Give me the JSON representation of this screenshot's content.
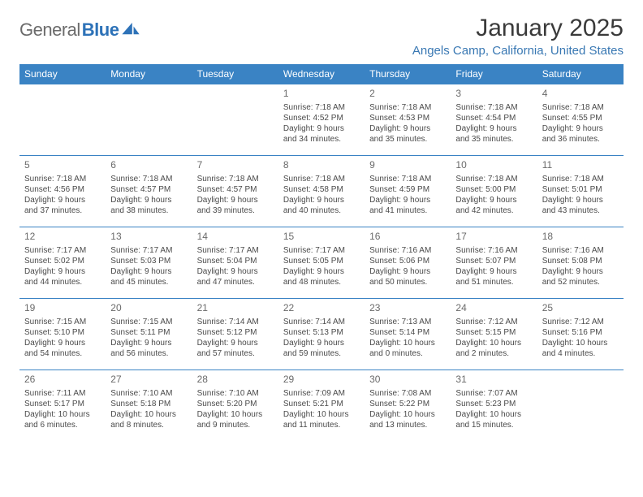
{
  "brand": {
    "part1": "General",
    "part2": "Blue"
  },
  "title": "January 2025",
  "location": "Angels Camp, California, United States",
  "colors": {
    "header_bg": "#3a83c4",
    "header_text": "#ffffff",
    "location_text": "#3978b3",
    "row_border": "#3a83c4",
    "logo_gray": "#6b6b6b",
    "logo_blue": "#2d72b8"
  },
  "days": [
    "Sunday",
    "Monday",
    "Tuesday",
    "Wednesday",
    "Thursday",
    "Friday",
    "Saturday"
  ],
  "weeks": [
    [
      {
        "n": "",
        "t": ""
      },
      {
        "n": "",
        "t": ""
      },
      {
        "n": "",
        "t": ""
      },
      {
        "n": "1",
        "t": "Sunrise: 7:18 AM\nSunset: 4:52 PM\nDaylight: 9 hours and 34 minutes."
      },
      {
        "n": "2",
        "t": "Sunrise: 7:18 AM\nSunset: 4:53 PM\nDaylight: 9 hours and 35 minutes."
      },
      {
        "n": "3",
        "t": "Sunrise: 7:18 AM\nSunset: 4:54 PM\nDaylight: 9 hours and 35 minutes."
      },
      {
        "n": "4",
        "t": "Sunrise: 7:18 AM\nSunset: 4:55 PM\nDaylight: 9 hours and 36 minutes."
      }
    ],
    [
      {
        "n": "5",
        "t": "Sunrise: 7:18 AM\nSunset: 4:56 PM\nDaylight: 9 hours and 37 minutes."
      },
      {
        "n": "6",
        "t": "Sunrise: 7:18 AM\nSunset: 4:57 PM\nDaylight: 9 hours and 38 minutes."
      },
      {
        "n": "7",
        "t": "Sunrise: 7:18 AM\nSunset: 4:57 PM\nDaylight: 9 hours and 39 minutes."
      },
      {
        "n": "8",
        "t": "Sunrise: 7:18 AM\nSunset: 4:58 PM\nDaylight: 9 hours and 40 minutes."
      },
      {
        "n": "9",
        "t": "Sunrise: 7:18 AM\nSunset: 4:59 PM\nDaylight: 9 hours and 41 minutes."
      },
      {
        "n": "10",
        "t": "Sunrise: 7:18 AM\nSunset: 5:00 PM\nDaylight: 9 hours and 42 minutes."
      },
      {
        "n": "11",
        "t": "Sunrise: 7:18 AM\nSunset: 5:01 PM\nDaylight: 9 hours and 43 minutes."
      }
    ],
    [
      {
        "n": "12",
        "t": "Sunrise: 7:17 AM\nSunset: 5:02 PM\nDaylight: 9 hours and 44 minutes."
      },
      {
        "n": "13",
        "t": "Sunrise: 7:17 AM\nSunset: 5:03 PM\nDaylight: 9 hours and 45 minutes."
      },
      {
        "n": "14",
        "t": "Sunrise: 7:17 AM\nSunset: 5:04 PM\nDaylight: 9 hours and 47 minutes."
      },
      {
        "n": "15",
        "t": "Sunrise: 7:17 AM\nSunset: 5:05 PM\nDaylight: 9 hours and 48 minutes."
      },
      {
        "n": "16",
        "t": "Sunrise: 7:16 AM\nSunset: 5:06 PM\nDaylight: 9 hours and 50 minutes."
      },
      {
        "n": "17",
        "t": "Sunrise: 7:16 AM\nSunset: 5:07 PM\nDaylight: 9 hours and 51 minutes."
      },
      {
        "n": "18",
        "t": "Sunrise: 7:16 AM\nSunset: 5:08 PM\nDaylight: 9 hours and 52 minutes."
      }
    ],
    [
      {
        "n": "19",
        "t": "Sunrise: 7:15 AM\nSunset: 5:10 PM\nDaylight: 9 hours and 54 minutes."
      },
      {
        "n": "20",
        "t": "Sunrise: 7:15 AM\nSunset: 5:11 PM\nDaylight: 9 hours and 56 minutes."
      },
      {
        "n": "21",
        "t": "Sunrise: 7:14 AM\nSunset: 5:12 PM\nDaylight: 9 hours and 57 minutes."
      },
      {
        "n": "22",
        "t": "Sunrise: 7:14 AM\nSunset: 5:13 PM\nDaylight: 9 hours and 59 minutes."
      },
      {
        "n": "23",
        "t": "Sunrise: 7:13 AM\nSunset: 5:14 PM\nDaylight: 10 hours and 0 minutes."
      },
      {
        "n": "24",
        "t": "Sunrise: 7:12 AM\nSunset: 5:15 PM\nDaylight: 10 hours and 2 minutes."
      },
      {
        "n": "25",
        "t": "Sunrise: 7:12 AM\nSunset: 5:16 PM\nDaylight: 10 hours and 4 minutes."
      }
    ],
    [
      {
        "n": "26",
        "t": "Sunrise: 7:11 AM\nSunset: 5:17 PM\nDaylight: 10 hours and 6 minutes."
      },
      {
        "n": "27",
        "t": "Sunrise: 7:10 AM\nSunset: 5:18 PM\nDaylight: 10 hours and 8 minutes."
      },
      {
        "n": "28",
        "t": "Sunrise: 7:10 AM\nSunset: 5:20 PM\nDaylight: 10 hours and 9 minutes."
      },
      {
        "n": "29",
        "t": "Sunrise: 7:09 AM\nSunset: 5:21 PM\nDaylight: 10 hours and 11 minutes."
      },
      {
        "n": "30",
        "t": "Sunrise: 7:08 AM\nSunset: 5:22 PM\nDaylight: 10 hours and 13 minutes."
      },
      {
        "n": "31",
        "t": "Sunrise: 7:07 AM\nSunset: 5:23 PM\nDaylight: 10 hours and 15 minutes."
      },
      {
        "n": "",
        "t": ""
      }
    ]
  ]
}
